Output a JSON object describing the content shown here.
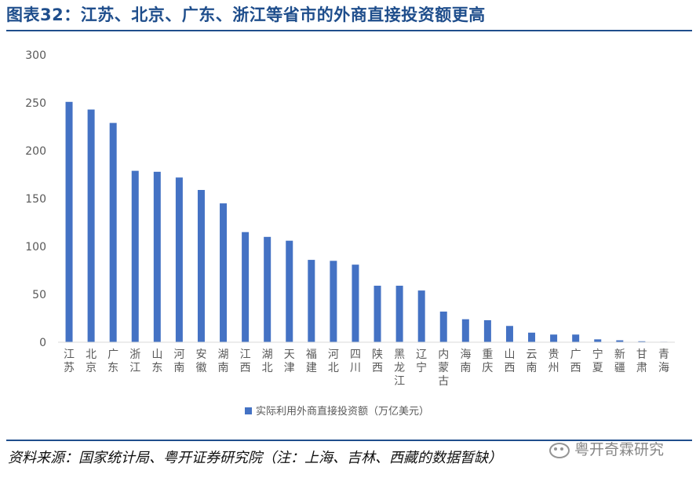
{
  "title": "图表32：江苏、北京、广东、浙江等省市的外商直接投资额更高",
  "source": "资料来源：国家统计局、粤开证券研究院（注：上海、吉林、西藏的数据暂缺）",
  "watermark": "粤开奇霖研究",
  "colors": {
    "bar": "#4472c4",
    "title": "#1f4e8c"
  },
  "chart_data": {
    "type": "bar",
    "categories": [
      "江苏",
      "北京",
      "广东",
      "浙江",
      "山东",
      "河南",
      "安徽",
      "湖南",
      "江西",
      "湖北",
      "天津",
      "福建",
      "河北",
      "四川",
      "陕西",
      "黑龙江",
      "辽宁",
      "内蒙古",
      "海南",
      "重庆",
      "山西",
      "云南",
      "贵州",
      "广西",
      "宁夏",
      "新疆",
      "甘肃",
      "青海"
    ],
    "series": [
      {
        "name": "实际利用外商直接投资额（万亿美元）",
        "values": [
          251,
          243,
          229,
          179,
          178,
          172,
          159,
          145,
          115,
          110,
          106,
          86,
          85,
          81,
          59,
          59,
          54,
          32,
          24,
          23,
          17,
          10,
          8,
          8,
          3,
          2,
          1,
          0.5
        ]
      }
    ],
    "yticks": [
      0,
      50,
      100,
      150,
      200,
      250,
      300
    ],
    "ylim": [
      0,
      300
    ],
    "xlabel": "",
    "ylabel": "",
    "legend_position": "bottom",
    "grid": false
  }
}
